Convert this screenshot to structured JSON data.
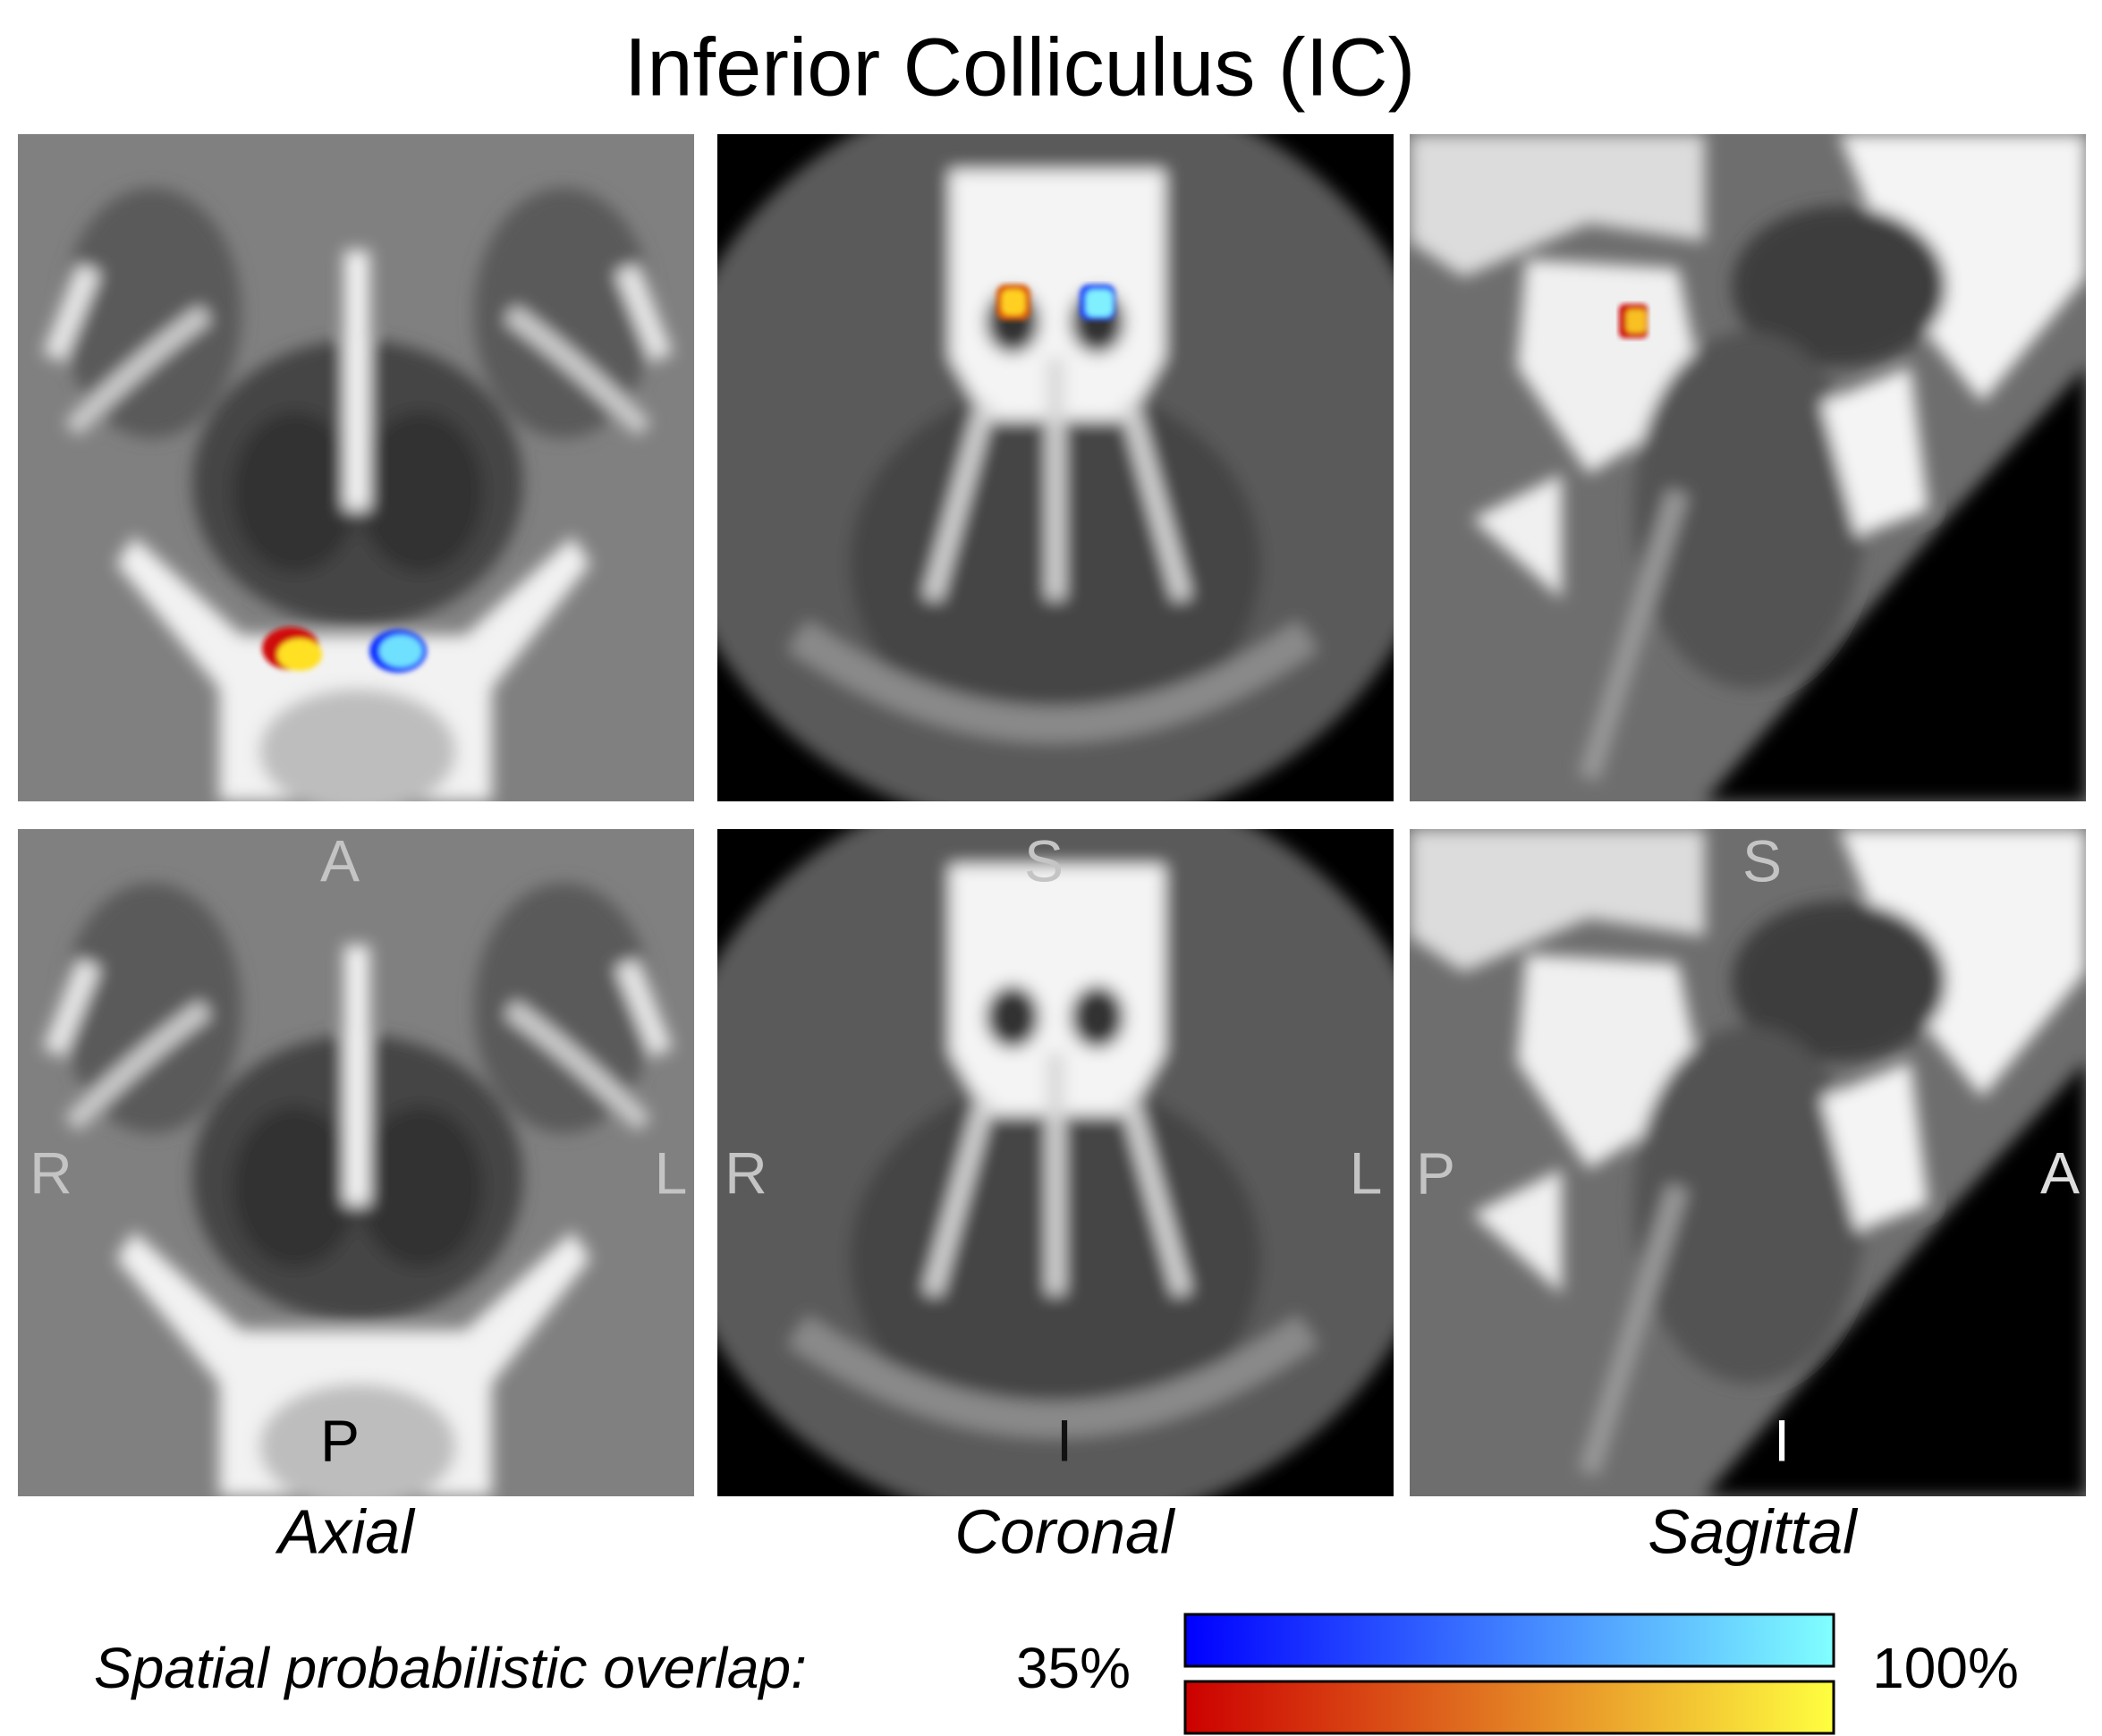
{
  "title": "Inferior Colliculus (IC)",
  "panels": [
    {
      "label": "Axial",
      "orientation": {
        "top": "A",
        "left": "R",
        "right": "L",
        "bottom": "P"
      }
    },
    {
      "label": "Coronal",
      "orientation": {
        "top": "S",
        "left": "R",
        "right": "L",
        "bottom": "I"
      }
    },
    {
      "label": "Sagittal",
      "orientation": {
        "top": "S",
        "left": "P",
        "right": "A",
        "bottom": "I"
      }
    }
  ],
  "legend": {
    "label": "Spatial probabilistic overlap:",
    "min": "35%",
    "max": "100%"
  }
}
